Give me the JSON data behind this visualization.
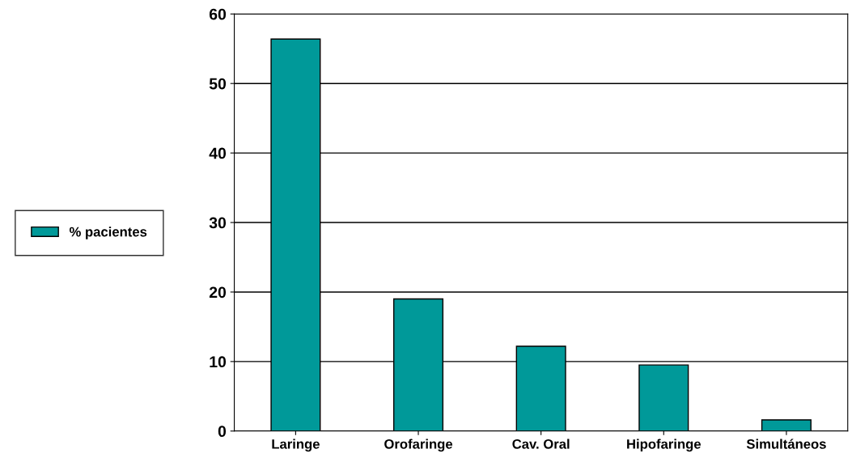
{
  "chart_data": {
    "type": "bar",
    "categories": [
      "Laringe",
      "Orofaringe",
      "Cav. Oral",
      "Hipofaringe",
      "Simultáneos"
    ],
    "series": [
      {
        "name": "% pacientes",
        "color": "#009999",
        "values": [
          56.4,
          19,
          12.2,
          9.5,
          1.6
        ]
      }
    ],
    "ylim": [
      0,
      60
    ],
    "yticks": [
      0,
      10,
      20,
      30,
      40,
      50,
      60
    ],
    "grid": "y",
    "legend": "left"
  }
}
